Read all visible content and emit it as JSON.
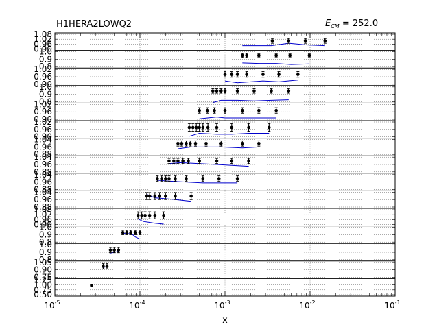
{
  "chart_data": {
    "type": "scatter",
    "title": "H1HERA2LOWQ2",
    "annotation": {
      "symbol": "E",
      "subscript": "CM",
      "text": " = 252.0"
    },
    "xlabel": "x",
    "ylabel": "",
    "xscale": "log",
    "xlim": [
      1e-05,
      0.1
    ],
    "x_ticks": [
      {
        "value": 1e-05,
        "base": "10",
        "exp": "-5"
      },
      {
        "value": 0.0001,
        "base": "10",
        "exp": "-4"
      },
      {
        "value": 0.001,
        "base": "10",
        "exp": "-3"
      },
      {
        "value": 0.01,
        "base": "10",
        "exp": "-2"
      },
      {
        "value": 0.1,
        "base": "10",
        "exp": "-1"
      }
    ],
    "grid": true,
    "colors": {
      "data": "#000000",
      "theory": "#0000cc",
      "grid": "#555555"
    },
    "panels": [
      {
        "ylim": [
          0.88,
          1.1
        ],
        "yticks": [
          "0.90",
          "0.96",
          "1.02",
          "1.08"
        ],
        "x": [
          0.0036,
          0.0056,
          0.0088,
          0.015
        ],
        "y": [
          1.0,
          1.0,
          1.0,
          1.0
        ],
        "err": [
          0.03,
          0.03,
          0.03,
          0.03
        ],
        "theory": [
          [
            0.0016,
            0.94
          ],
          [
            0.0035,
            0.94
          ],
          [
            0.0056,
            0.97
          ],
          [
            0.009,
            0.95
          ],
          [
            0.015,
            0.94
          ]
        ]
      },
      {
        "ylim": [
          0.75,
          1.1
        ],
        "yticks": [
          "0.8",
          "0.9",
          "1.0"
        ],
        "x": [
          0.0016,
          0.0018,
          0.0025,
          0.004,
          0.0058,
          0.0098
        ],
        "y": [
          1.0,
          1.0,
          1.0,
          1.0,
          1.0,
          1.0
        ],
        "err": [
          0.04,
          0.04,
          0.03,
          0.03,
          0.03,
          0.03
        ],
        "theory": [
          [
            0.0016,
            0.85
          ],
          [
            0.0025,
            0.84
          ],
          [
            0.004,
            0.84
          ],
          [
            0.006,
            0.82
          ],
          [
            0.0098,
            0.83
          ]
        ]
      },
      {
        "ylim": [
          0.88,
          1.07
        ],
        "yticks": [
          "0.90",
          "0.96",
          "1.02"
        ],
        "x": [
          0.001,
          0.0012,
          0.0014,
          0.0018,
          0.0028,
          0.0043,
          0.0072
        ],
        "y": [
          1.0,
          1.0,
          1.0,
          1.0,
          1.0,
          1.0,
          1.0
        ],
        "err": [
          0.03,
          0.03,
          0.03,
          0.03,
          0.03,
          0.03,
          0.03
        ],
        "theory": [
          [
            0.001,
            0.93
          ],
          [
            0.0014,
            0.91
          ],
          [
            0.002,
            0.92
          ],
          [
            0.0028,
            0.93
          ],
          [
            0.0043,
            0.92
          ],
          [
            0.0072,
            0.94
          ]
        ]
      },
      {
        "ylim": [
          0.78,
          1.1
        ],
        "yticks": [
          "0.8",
          "0.9",
          "1.0"
        ],
        "x": [
          0.00072,
          0.0008,
          0.0009,
          0.001,
          0.0014,
          0.0022,
          0.0035,
          0.0056
        ],
        "y": [
          1.0,
          1.0,
          1.0,
          1.0,
          1.0,
          1.0,
          1.0,
          1.0
        ],
        "err": [
          0.04,
          0.04,
          0.04,
          0.04,
          0.04,
          0.04,
          0.04,
          0.04
        ],
        "theory": [
          [
            0.00072,
            0.79
          ],
          [
            0.0009,
            0.83
          ],
          [
            0.0014,
            0.83
          ],
          [
            0.0022,
            0.82
          ],
          [
            0.0035,
            0.83
          ],
          [
            0.0056,
            0.84
          ]
        ]
      },
      {
        "ylim": [
          0.89,
          1.08
        ],
        "yticks": [
          "0.90",
          "0.96",
          "1.02"
        ],
        "x": [
          0.0005,
          0.00062,
          0.00075,
          0.001,
          0.0016,
          0.0025,
          0.004
        ],
        "y": [
          1.0,
          1.0,
          1.0,
          1.0,
          1.0,
          1.0,
          1.0
        ],
        "err": [
          0.03,
          0.03,
          0.03,
          0.03,
          0.03,
          0.03,
          0.03
        ],
        "theory": [
          [
            0.0005,
            0.91
          ],
          [
            0.0008,
            0.93
          ],
          [
            0.001,
            0.92
          ],
          [
            0.0016,
            0.92
          ],
          [
            0.004,
            0.92
          ]
        ]
      },
      {
        "ylim": [
          0.88,
          1.06
        ],
        "yticks": [
          "0.90",
          "0.96",
          "1.02"
        ],
        "x": [
          0.00038,
          0.00042,
          0.00046,
          0.0005,
          0.00055,
          0.00063,
          0.0008,
          0.0012,
          0.0019,
          0.0033
        ],
        "y": [
          0.99,
          0.99,
          0.99,
          0.99,
          0.99,
          0.99,
          0.99,
          0.99,
          0.99,
          0.99
        ],
        "err": [
          0.04,
          0.04,
          0.04,
          0.04,
          0.04,
          0.04,
          0.04,
          0.04,
          0.04,
          0.04
        ],
        "theory": [
          [
            0.00038,
            0.9
          ],
          [
            0.0005,
            0.93
          ],
          [
            0.0008,
            0.92
          ],
          [
            0.0012,
            0.92
          ],
          [
            0.0019,
            0.93
          ],
          [
            0.0033,
            0.93
          ]
        ]
      },
      {
        "ylim": [
          0.86,
          1.06
        ],
        "yticks": [
          "0.88",
          "0.96",
          "1.04"
        ],
        "x": [
          0.00028,
          0.00031,
          0.00035,
          0.00039,
          0.00045,
          0.0006,
          0.0009,
          0.0016,
          0.0025
        ],
        "y": [
          1.0,
          1.0,
          1.0,
          1.0,
          1.0,
          1.0,
          1.0,
          1.0,
          1.0
        ],
        "err": [
          0.03,
          0.03,
          0.03,
          0.03,
          0.03,
          0.03,
          0.03,
          0.03,
          0.03
        ],
        "theory": [
          [
            0.00028,
            0.94
          ],
          [
            0.0004,
            0.96
          ],
          [
            0.0006,
            0.96
          ],
          [
            0.0009,
            0.96
          ],
          [
            0.0016,
            0.95
          ],
          [
            0.0025,
            0.96
          ]
        ]
      },
      {
        "ylim": [
          0.86,
          1.06
        ],
        "yticks": [
          "0.88",
          "0.96",
          "1.04"
        ],
        "x": [
          0.00022,
          0.00025,
          0.00028,
          0.00032,
          0.00037,
          0.0005,
          0.0008,
          0.0012,
          0.0019
        ],
        "y": [
          1.0,
          1.0,
          1.0,
          1.0,
          1.0,
          1.0,
          1.0,
          1.0,
          1.0
        ],
        "err": [
          0.03,
          0.03,
          0.03,
          0.03,
          0.03,
          0.03,
          0.03,
          0.03,
          0.03
        ],
        "theory": [
          [
            0.00022,
            0.97
          ],
          [
            0.0003,
            0.98
          ],
          [
            0.0005,
            0.97
          ],
          [
            0.0008,
            0.96
          ],
          [
            0.0012,
            0.95
          ],
          [
            0.0019,
            0.94
          ]
        ]
      },
      {
        "ylim": [
          0.86,
          1.06
        ],
        "yticks": [
          "0.88",
          "0.96",
          "1.04"
        ],
        "x": [
          0.00016,
          0.00018,
          0.0002,
          0.00022,
          0.00026,
          0.00035,
          0.00055,
          0.00085,
          0.0014
        ],
        "y": [
          1.0,
          1.0,
          1.0,
          1.0,
          1.0,
          1.0,
          1.0,
          1.0,
          1.0
        ],
        "err": [
          0.03,
          0.03,
          0.03,
          0.03,
          0.03,
          0.03,
          0.03,
          0.03,
          0.03
        ],
        "theory": [
          [
            0.00016,
            0.98
          ],
          [
            0.00022,
            0.97
          ],
          [
            0.00035,
            0.96
          ],
          [
            0.00055,
            0.95
          ],
          [
            0.0009,
            0.95
          ],
          [
            0.0014,
            0.95
          ]
        ]
      },
      {
        "ylim": [
          0.86,
          1.06
        ],
        "yticks": [
          "0.88",
          "0.96",
          "1.04"
        ],
        "x": [
          0.00012,
          0.00013,
          0.00015,
          0.00017,
          0.0002,
          0.00026,
          0.0004
        ],
        "y": [
          1.0,
          1.0,
          1.0,
          1.0,
          1.0,
          1.0,
          1.0
        ],
        "err": [
          0.04,
          0.04,
          0.04,
          0.04,
          0.04,
          0.04,
          0.04
        ],
        "theory": [
          [
            0.00012,
            1.02
          ],
          [
            0.00015,
            0.98
          ],
          [
            0.0002,
            0.97
          ],
          [
            0.00026,
            0.96
          ],
          [
            0.0004,
            0.94
          ]
        ]
      },
      {
        "ylim": [
          0.88,
          1.08
        ],
        "yticks": [
          "0.90",
          "0.96",
          "1.02",
          "1.08"
        ],
        "x": [
          9.5e-05,
          0.000105,
          0.000115,
          0.00013,
          0.00015,
          0.00019
        ],
        "y": [
          1.0,
          1.0,
          1.0,
          1.0,
          1.0,
          1.0
        ],
        "err": [
          0.04,
          0.04,
          0.04,
          0.04,
          0.04,
          0.04
        ],
        "theory": [
          [
            9.5e-05,
            0.96
          ],
          [
            0.00011,
            0.93
          ],
          [
            0.00013,
            0.92
          ],
          [
            0.00015,
            0.91
          ],
          [
            0.00019,
            0.9
          ]
        ]
      },
      {
        "ylim": [
          0.75,
          1.15
        ],
        "yticks": [
          "0.8",
          "0.9",
          "1.0"
        ],
        "x": [
          6.3e-05,
          7e-05,
          7.8e-05,
          8.8e-05,
          0.0001
        ],
        "y": [
          1.0,
          1.0,
          1.0,
          1.0,
          1.0
        ],
        "err": [
          0.05,
          0.05,
          0.05,
          0.05,
          0.05
        ],
        "theory": [
          [
            6.3e-05,
            0.98
          ],
          [
            8e-05,
            0.97
          ],
          [
            8.8e-05,
            0.9
          ],
          [
            0.0001,
            0.85
          ]
        ]
      },
      {
        "ylim": [
          0.75,
          1.15
        ],
        "yticks": [
          "0.8",
          "0.9",
          "1.0"
        ],
        "x": [
          4.5e-05,
          5e-05,
          5.6e-05
        ],
        "y": [
          1.0,
          1.0,
          1.0
        ],
        "err": [
          0.06,
          0.06,
          0.06
        ],
        "theory": [
          [
            4.5e-05,
            0.93
          ],
          [
            5e-05,
            0.95
          ],
          [
            5.6e-05,
            0.97
          ]
        ]
      },
      {
        "ylim": [
          0.72,
          1.12
        ],
        "yticks": [
          "0.75",
          "0.90",
          "1.05"
        ],
        "x": [
          3.7e-05,
          4.1e-05
        ],
        "y": [
          1.0,
          1.0
        ],
        "err": [
          0.06,
          0.06
        ],
        "theory": [
          [
            3.7e-05,
            0.97
          ],
          [
            4.1e-05,
            1.0
          ]
        ]
      },
      {
        "ylim": [
          0.45,
          1.35
        ],
        "yticks": [
          "0.50",
          "0.75",
          "1.00",
          "1.25"
        ],
        "x": [
          2.7e-05
        ],
        "y": [
          1.0
        ],
        "err": [
          0.04
        ],
        "theory": []
      }
    ]
  }
}
